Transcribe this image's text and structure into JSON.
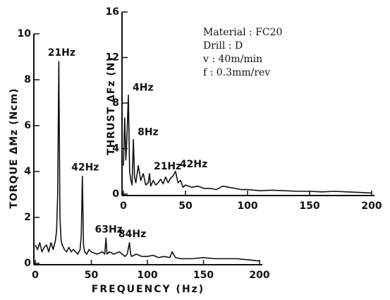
{
  "chart_data": [
    {
      "type": "line",
      "x_label": "FREQUENCY (Hz)",
      "y_label": "TORQUE ΔMz (Ncm)",
      "xlim": [
        0,
        200
      ],
      "ylim": [
        0,
        10
      ],
      "xticks": [
        0,
        50,
        100,
        150,
        200
      ],
      "yticks": [
        0,
        2,
        4,
        6,
        8,
        10
      ],
      "series": [
        {
          "color": "#111111",
          "x": [
            0,
            2,
            4,
            6,
            8,
            10,
            12,
            14,
            16,
            18,
            19,
            20,
            21,
            22,
            23,
            24,
            26,
            28,
            30,
            32,
            34,
            36,
            38,
            40,
            41,
            42,
            43,
            44,
            46,
            48,
            50,
            55,
            60,
            62,
            63,
            64,
            66,
            70,
            75,
            80,
            82,
            84,
            85,
            86,
            90,
            95,
            100,
            105,
            110,
            115,
            120,
            122,
            125,
            130,
            140,
            150,
            160,
            170,
            180,
            190,
            200
          ],
          "values": [
            0.8,
            0.6,
            0.9,
            0.5,
            0.7,
            0.8,
            0.5,
            0.9,
            0.6,
            1.0,
            1.4,
            3.0,
            8.8,
            2.0,
            1.0,
            0.8,
            0.6,
            0.5,
            0.7,
            0.5,
            0.6,
            0.5,
            0.4,
            0.6,
            1.2,
            3.8,
            0.8,
            0.5,
            0.4,
            0.6,
            0.5,
            0.4,
            0.5,
            0.4,
            1.1,
            0.4,
            0.5,
            0.4,
            0.5,
            0.3,
            0.4,
            0.9,
            0.4,
            0.3,
            0.4,
            0.3,
            0.3,
            0.35,
            0.25,
            0.3,
            0.25,
            0.5,
            0.25,
            0.2,
            0.2,
            0.25,
            0.2,
            0.2,
            0.2,
            0.15,
            0.1
          ]
        }
      ],
      "annotations": [
        {
          "text": "21Hz",
          "x": 21
        },
        {
          "text": "42Hz",
          "x": 42
        },
        {
          "text": "63Hz",
          "x": 63
        },
        {
          "text": "84Hz",
          "x": 84
        }
      ]
    },
    {
      "type": "line",
      "y_label": "THRUST ΔFz (N)",
      "xlim": [
        0,
        200
      ],
      "ylim": [
        0,
        16
      ],
      "xticks": [
        0,
        50,
        100,
        150,
        200
      ],
      "yticks": [
        0,
        4,
        8,
        12,
        16
      ],
      "series": [
        {
          "color": "#111111",
          "x": [
            0,
            1,
            2,
            3,
            4,
            5,
            6,
            7,
            8,
            9,
            10,
            12,
            14,
            16,
            18,
            20,
            21,
            22,
            24,
            26,
            28,
            30,
            32,
            34,
            36,
            38,
            40,
            42,
            44,
            46,
            48,
            50,
            55,
            60,
            65,
            70,
            75,
            80,
            85,
            90,
            95,
            100,
            110,
            120,
            130,
            140,
            150,
            160,
            170,
            180,
            190,
            200
          ],
          "values": [
            2.5,
            6.7,
            3.0,
            5.5,
            8.7,
            2.0,
            1.2,
            0.8,
            4.8,
            1.5,
            1.0,
            2.5,
            1.2,
            1.8,
            0.8,
            1.0,
            1.8,
            0.7,
            1.2,
            0.8,
            1.0,
            1.3,
            0.9,
            1.5,
            1.0,
            1.4,
            1.6,
            2.0,
            1.0,
            1.2,
            0.6,
            0.8,
            0.6,
            0.7,
            0.5,
            0.5,
            0.4,
            0.7,
            0.6,
            0.5,
            0.4,
            0.4,
            0.3,
            0.35,
            0.3,
            0.25,
            0.25,
            0.2,
            0.25,
            0.2,
            0.15,
            0.1
          ]
        }
      ],
      "annotations": [
        {
          "text": "4Hz",
          "x": 4
        },
        {
          "text": "8Hz",
          "x": 8
        },
        {
          "text": "21Hz",
          "x": 21
        },
        {
          "text": "42Hz",
          "x": 42
        }
      ],
      "conditions": [
        "Material : FC20",
        "Drill : D",
        "v : 40m/min",
        "f : 0.3mm/rev"
      ]
    }
  ]
}
